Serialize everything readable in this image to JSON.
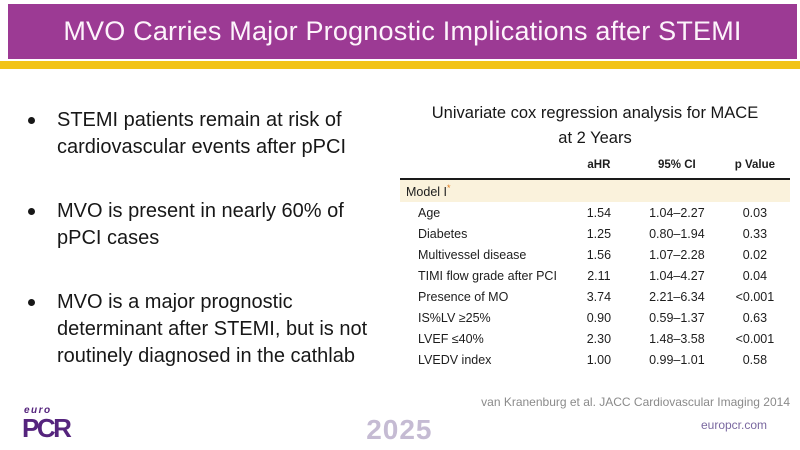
{
  "header": {
    "title": "MVO Carries Major Prognostic Implications after STEMI"
  },
  "bullets": [
    "STEMI patients remain at risk of cardiovascular events after pPCI",
    "MVO is present in nearly 60% of pPCI cases",
    "MVO is a major prognostic determinant after STEMI, but is not routinely diagnosed in the cathlab"
  ],
  "table": {
    "title_line1": "Univariate cox regression analysis for MACE",
    "title_line2": "at 2 Years",
    "columns": [
      "aHR",
      "95% CI",
      "p Value"
    ],
    "group_label": "Model I",
    "group_note_marker": "*",
    "rows": [
      {
        "label": "Age",
        "ahr": "1.54",
        "ci": "1.04–2.27",
        "p": "0.03"
      },
      {
        "label": "Diabetes",
        "ahr": "1.25",
        "ci": "0.80–1.94",
        "p": "0.33"
      },
      {
        "label": "Multivessel disease",
        "ahr": "1.56",
        "ci": "1.07–2.28",
        "p": "0.02"
      },
      {
        "label": "TIMI flow grade after PCI",
        "ahr": "2.11",
        "ci": "1.04–4.27",
        "p": "0.04"
      },
      {
        "label": "Presence of MO",
        "ahr": "3.74",
        "ci": "2.21–6.34",
        "p": "<0.001"
      },
      {
        "label": "IS%LV ≥25%",
        "ahr": "0.90",
        "ci": "0.59–1.37",
        "p": "0.63"
      },
      {
        "label": "LVEF ≤40%",
        "ahr": "2.30",
        "ci": "1.48–3.58",
        "p": "<0.001"
      },
      {
        "label": "LVEDV index",
        "ahr": "1.00",
        "ci": "0.99–1.01",
        "p": "0.58"
      }
    ]
  },
  "footer": {
    "logo_top": "euro",
    "logo_main": "PCR",
    "year": "2025",
    "citation": "van Kranenburg et al. JACC Cardiovascular Imaging 2014",
    "website": "europcr.com"
  },
  "colors": {
    "header_purple": "#9c3a94",
    "gold_stripe": "#f2c318",
    "table_group_cream": "#faf2dc",
    "note_marker_orange": "#e07818",
    "logo_purple": "#55247d",
    "year_lavender": "#c5bbd3",
    "citation_gray": "#8a8a8a",
    "link_purple": "#7a68a0",
    "text_black": "#171717"
  }
}
